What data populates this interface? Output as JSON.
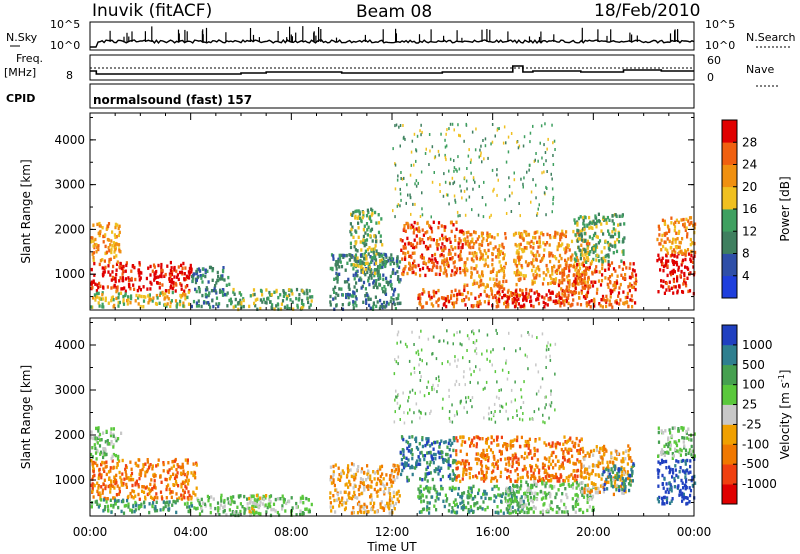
{
  "header": {
    "station": "Inuvik (fitACF)",
    "beam": "Beam 08",
    "date": "18/Feb/2010"
  },
  "top_panels": {
    "nsky_label": "N.Sky",
    "nsky_ticks": [
      "10^5",
      "10^0"
    ],
    "nsearch_label": "N.Search",
    "freq_label": "Freq.",
    "freq_unit": "[MHz]",
    "freq_tick": "8",
    "nave_label": "Nave",
    "nave_ticks": [
      "60",
      "0"
    ],
    "cpid_label": "CPID",
    "cpid_text": "normalsound (fast) 157"
  },
  "colors": {
    "power": [
      "#1f3fdc",
      "#2f4fa8",
      "#3f7f5f",
      "#3fa060",
      "#f0c020",
      "#f09010",
      "#f06010",
      "#e00000"
    ],
    "velocity": [
      "#e00000",
      "#f04010",
      "#f07800",
      "#f0a000",
      "#c8c8c8",
      "#5ac83c",
      "#46a050",
      "#2f7f8f",
      "#2040c0"
    ]
  },
  "chart_data": [
    {
      "type": "heatmap",
      "panel": "power",
      "xlabel": "",
      "ylabel": "Slant Range [km]",
      "x_ticks": [
        "00:00",
        "04:00",
        "08:00",
        "12:00",
        "16:00",
        "20:00",
        "00:00"
      ],
      "y_ticks": [
        "1000",
        "2000",
        "3000",
        "4000"
      ],
      "xlim": [
        0,
        24
      ],
      "ylim": [
        200,
        4600
      ],
      "colorbar": {
        "label": "Power [dB]",
        "ticks": [
          "28",
          "24",
          "20",
          "16",
          "12",
          "8",
          "4"
        ],
        "range": [
          0,
          32
        ]
      },
      "blobs": [
        {
          "t": [
            0.0,
            4.0
          ],
          "r": [
            650,
            1300
          ],
          "level": 7
        },
        {
          "t": [
            0.0,
            4.0
          ],
          "r": [
            300,
            650
          ],
          "level": 4
        },
        {
          "t": [
            0.0,
            1.2
          ],
          "r": [
            1300,
            2200
          ],
          "level": 5
        },
        {
          "t": [
            4.0,
            5.5
          ],
          "r": [
            300,
            1200
          ],
          "level": 2
        },
        {
          "t": [
            5.5,
            8.8
          ],
          "r": [
            250,
            700
          ],
          "level": 3
        },
        {
          "t": [
            9.5,
            12.3
          ],
          "r": [
            250,
            1500
          ],
          "level": 2
        },
        {
          "t": [
            10.3,
            11.6
          ],
          "r": [
            1000,
            2500
          ],
          "level": 3
        },
        {
          "t": [
            12.3,
            14.8
          ],
          "r": [
            1000,
            2200
          ],
          "level": 6
        },
        {
          "t": [
            13.0,
            17.5
          ],
          "r": [
            300,
            700
          ],
          "level": 6
        },
        {
          "t": [
            14.8,
            16.5
          ],
          "r": [
            700,
            2000
          ],
          "level": 5
        },
        {
          "t": [
            16.5,
            19.0
          ],
          "r": [
            300,
            700
          ],
          "level": 7
        },
        {
          "t": [
            16.8,
            19.8
          ],
          "r": [
            800,
            2000
          ],
          "level": 5
        },
        {
          "t": [
            18.5,
            21.7
          ],
          "r": [
            300,
            1300
          ],
          "level": 6
        },
        {
          "t": [
            19.2,
            21.2
          ],
          "r": [
            1300,
            2400
          ],
          "level": 3
        },
        {
          "t": [
            22.5,
            24.0
          ],
          "r": [
            600,
            1500
          ],
          "level": 7
        },
        {
          "t": [
            22.5,
            24.0
          ],
          "r": [
            1500,
            2300
          ],
          "level": 5
        },
        {
          "t": [
            12.0,
            18.5
          ],
          "r": [
            2300,
            4400
          ],
          "level": 3
        }
      ]
    },
    {
      "type": "heatmap",
      "panel": "velocity",
      "xlabel": "Time UT",
      "ylabel": "Slant Range [km]",
      "x_ticks": [
        "00:00",
        "04:00",
        "08:00",
        "12:00",
        "16:00",
        "20:00",
        "00:00"
      ],
      "y_ticks": [
        "1000",
        "2000",
        "3000",
        "4000"
      ],
      "xlim": [
        0,
        24
      ],
      "ylim": [
        200,
        4600
      ],
      "colorbar": {
        "label": "Velocity [m s^-1]",
        "ticks": [
          "1000",
          "500",
          "100",
          "25",
          "-25",
          "-100",
          "-500",
          "-1000"
        ],
        "range": [
          -1000,
          1000
        ]
      },
      "blobs": [
        {
          "t": [
            0.0,
            4.2
          ],
          "r": [
            600,
            1500
          ],
          "level": 2
        },
        {
          "t": [
            0.0,
            4.2
          ],
          "r": [
            300,
            600
          ],
          "level": 6
        },
        {
          "t": [
            0.0,
            1.2
          ],
          "r": [
            1500,
            2200
          ],
          "level": 5
        },
        {
          "t": [
            4.2,
            8.8
          ],
          "r": [
            250,
            700
          ],
          "level": 5
        },
        {
          "t": [
            6.2,
            7.0
          ],
          "r": [
            250,
            700
          ],
          "level": 4
        },
        {
          "t": [
            9.5,
            12.3
          ],
          "r": [
            300,
            1400
          ],
          "level": 3
        },
        {
          "t": [
            12.3,
            14.5
          ],
          "r": [
            1000,
            2000
          ],
          "level": 7
        },
        {
          "t": [
            14.5,
            16.7
          ],
          "r": [
            1000,
            2000
          ],
          "level": 2
        },
        {
          "t": [
            13.0,
            17.5
          ],
          "r": [
            300,
            900
          ],
          "level": 6
        },
        {
          "t": [
            16.7,
            19.5
          ],
          "r": [
            1000,
            2000
          ],
          "level": 2
        },
        {
          "t": [
            16.5,
            20.0
          ],
          "r": [
            300,
            1000
          ],
          "level": 5
        },
        {
          "t": [
            19.5,
            21.5
          ],
          "r": [
            700,
            1800
          ],
          "level": 3
        },
        {
          "t": [
            20.3,
            21.6
          ],
          "r": [
            800,
            1400
          ],
          "level": 7
        },
        {
          "t": [
            22.5,
            24.0
          ],
          "r": [
            500,
            1500
          ],
          "level": 8
        },
        {
          "t": [
            22.5,
            24.0
          ],
          "r": [
            1500,
            2200
          ],
          "level": 5
        },
        {
          "t": [
            12.0,
            18.5
          ],
          "r": [
            2300,
            4400
          ],
          "level": 5
        }
      ]
    }
  ]
}
